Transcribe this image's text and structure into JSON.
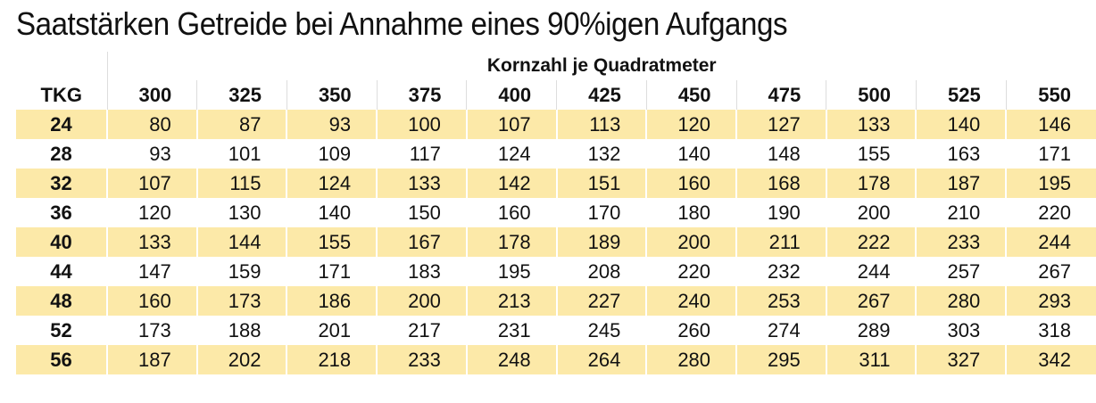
{
  "title": "Saatstärken Getreide bei Annahme eines 90%igen Aufgangs",
  "table": {
    "group_header": "Kornzahl je Quadratmeter",
    "corner": "TKG",
    "columns": [
      300,
      325,
      350,
      375,
      400,
      425,
      450,
      475,
      500,
      525,
      550
    ],
    "rows": [
      [
        24,
        80,
        87,
        93,
        100,
        107,
        113,
        120,
        127,
        133,
        140,
        146
      ],
      [
        28,
        93,
        101,
        109,
        117,
        124,
        132,
        140,
        148,
        155,
        163,
        171
      ],
      [
        32,
        107,
        115,
        124,
        133,
        142,
        151,
        160,
        168,
        178,
        187,
        195
      ],
      [
        36,
        120,
        130,
        140,
        150,
        160,
        170,
        180,
        190,
        200,
        210,
        220
      ],
      [
        40,
        133,
        144,
        155,
        167,
        178,
        189,
        200,
        211,
        222,
        233,
        244
      ],
      [
        44,
        147,
        159,
        171,
        183,
        195,
        208,
        220,
        232,
        244,
        257,
        267
      ],
      [
        48,
        160,
        173,
        186,
        200,
        213,
        227,
        240,
        253,
        267,
        280,
        293
      ],
      [
        52,
        173,
        188,
        201,
        217,
        231,
        245,
        260,
        274,
        289,
        303,
        318
      ],
      [
        56,
        187,
        202,
        218,
        233,
        248,
        264,
        280,
        295,
        311,
        327,
        342
      ]
    ]
  }
}
